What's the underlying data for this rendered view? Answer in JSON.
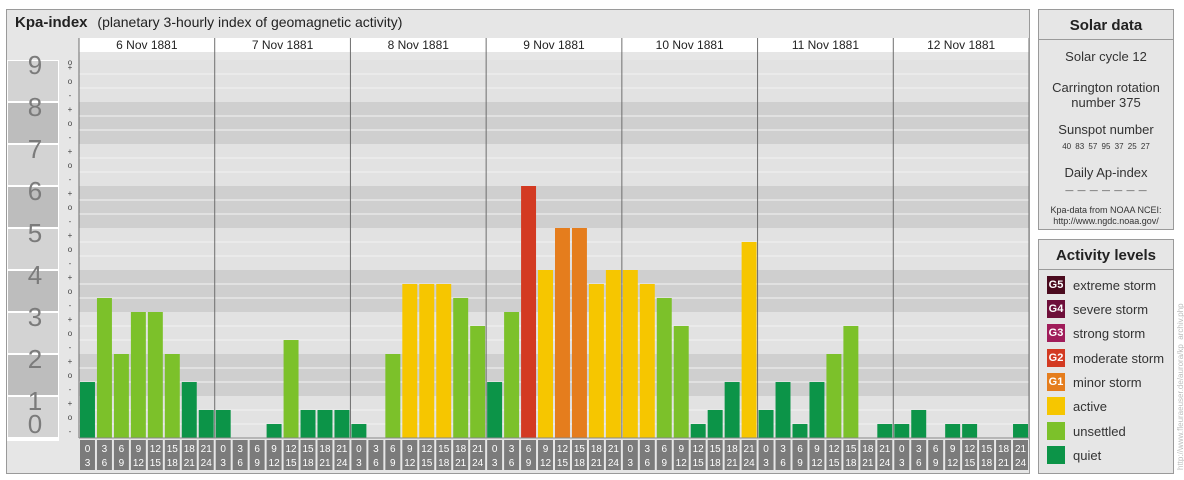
{
  "header": {
    "title": "Kpa-index",
    "subtitle": "(planetary 3-hourly index of geomagnetic activity)"
  },
  "chart_data": {
    "type": "bar",
    "title": "Kpa-index",
    "subtitle": "(planetary 3-hourly index of geomagnetic activity)",
    "ylim": [
      0,
      9
    ],
    "y_ticks": [
      "0",
      "1",
      "2",
      "3",
      "4",
      "5",
      "6",
      "7",
      "8",
      "9"
    ],
    "y_subticks": [
      "-",
      "o",
      "+"
    ],
    "days": [
      "6 Nov 1881",
      "7 Nov 1881",
      "8 Nov 1881",
      "9 Nov 1881",
      "10 Nov 1881",
      "11 Nov 1881",
      "12 Nov 1881"
    ],
    "interval_starts": [
      "0",
      "3",
      "6",
      "9",
      "12",
      "15",
      "18",
      "21"
    ],
    "interval_ends": [
      "3",
      "6",
      "9",
      "12",
      "15",
      "18",
      "21",
      "24"
    ],
    "values": [
      [
        1.333,
        3.333,
        2,
        3,
        3,
        2,
        1.333,
        0.667
      ],
      [
        0.667,
        0,
        0,
        0.333,
        2.333,
        0.667,
        0.667,
        0.667
      ],
      [
        0.333,
        0,
        2,
        3.667,
        3.667,
        3.667,
        3.333,
        2.667
      ],
      [
        1.333,
        3,
        6,
        4,
        5,
        5,
        3.667,
        4
      ],
      [
        4,
        3.667,
        3.333,
        2.667,
        0.333,
        0.667,
        1.333,
        4.667
      ],
      [
        0.667,
        1.333,
        0.333,
        1.333,
        2,
        2.667,
        0,
        0.333
      ],
      [
        0.333,
        0.667,
        0,
        0.333,
        0.333,
        0,
        0,
        0.333
      ]
    ],
    "grid": true
  },
  "solar": {
    "title": "Solar data",
    "cycle": "Solar cycle 12",
    "carrington_line1": "Carrington rotation",
    "carrington_line2": "number 375",
    "sunspot_label": "Sunspot number",
    "sunspot_values": "40 83 57 95 37 25 27",
    "ap_label": "Daily Ap-index",
    "ap_values": "— — — — — — —",
    "source_line1": "Kpa-data from NOAA NCEI:",
    "source_line2": "http://www.ngdc.noaa.gov/"
  },
  "levels": {
    "title": "Activity levels",
    "items": [
      {
        "badge": "G5",
        "label": "extreme storm",
        "color": "#4a0a1e"
      },
      {
        "badge": "G4",
        "label": "severe storm",
        "color": "#6e0f3a"
      },
      {
        "badge": "G3",
        "label": "strong storm",
        "color": "#a01c5a"
      },
      {
        "badge": "G2",
        "label": "moderate storm",
        "color": "#d33a22"
      },
      {
        "badge": "G1",
        "label": "minor storm",
        "color": "#e57d1d"
      },
      {
        "badge": "",
        "label": "active",
        "color": "#f6c600"
      },
      {
        "badge": "",
        "label": "unsettled",
        "color": "#7cc12a"
      },
      {
        "badge": "",
        "label": "quiet",
        "color": "#0c9448"
      }
    ]
  },
  "credit": "http://www.fleuraeuser.de/aurora/kp_archiv.php"
}
